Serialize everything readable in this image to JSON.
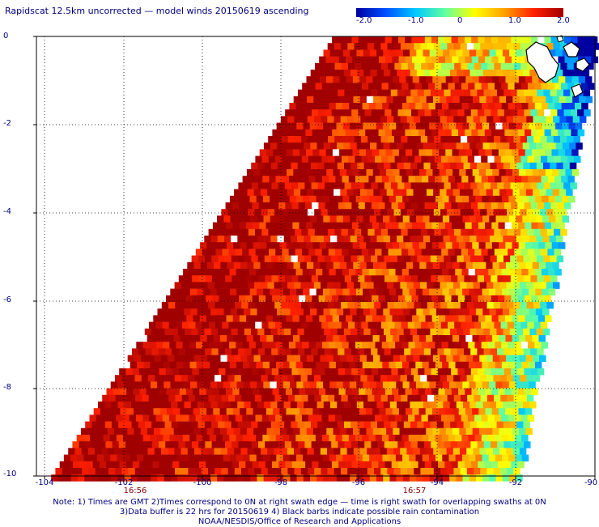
{
  "title": "Rapidscat 12.5km uncorrected — model winds 20150619 ascending",
  "colorbar": {
    "ticks": [
      "-2.0",
      "-1.0",
      "0",
      "1.0",
      "2.0"
    ],
    "colors": [
      "#0000a0",
      "#0050ff",
      "#00c8ff",
      "#60ffa0",
      "#ffff00",
      "#ffa000",
      "#ff2000",
      "#a00000"
    ]
  },
  "axes": {
    "lat_ticks": [
      "0",
      "-2",
      "-4",
      "-6",
      "-8",
      "-10"
    ],
    "lon_ticks": [
      "-104",
      "-102",
      "-100",
      "-98",
      "-96",
      "-94",
      "-92",
      "-90"
    ],
    "lat_range": [
      -10,
      0
    ],
    "lon_range": [
      -104,
      -90
    ],
    "grid": "dotted"
  },
  "swath_times": [
    {
      "label": "16:56",
      "lon": -101.7
    },
    {
      "label": "16:57",
      "lon": -95.3
    }
  ],
  "notes": [
    "Note: 1) Times are GMT 2)Times correspond to 0N at right swath edge — time is right swath for overlapping swaths at 0N",
    "3)Data buffer is 22 hrs for 20150619 4) Black barbs indicate possible rain contamination",
    "NOAA/NESDIS/Office of Research and Applications"
  ]
}
